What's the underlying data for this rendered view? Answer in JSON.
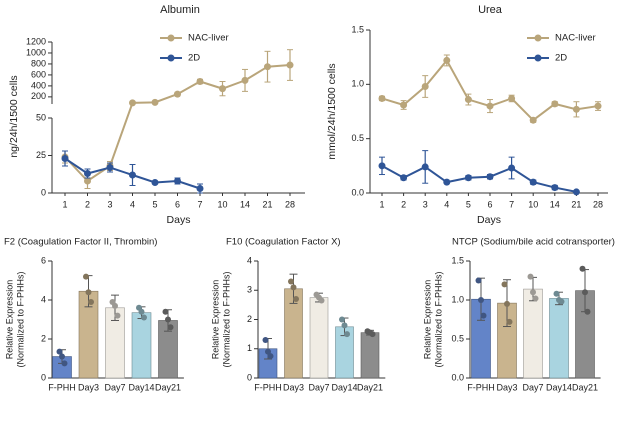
{
  "chart_data": [
    {
      "type": "line",
      "title": "Albumin",
      "xlabel": "Days",
      "ylabel": "ng/24h/1500 cells",
      "categories": [
        "1",
        "2",
        "3",
        "4",
        "5",
        "6",
        "7",
        "10",
        "14",
        "21",
        "28"
      ],
      "ylim": [
        0,
        1200
      ],
      "ybreak": [
        50,
        70
      ],
      "yticks": [
        0,
        25,
        50,
        200,
        400,
        600,
        800,
        1000,
        1200
      ],
      "series": [
        {
          "name": "NAC-liver",
          "color": "#b9a57a",
          "values": [
            24,
            8,
            18,
            90,
            100,
            250,
            480,
            350,
            500,
            750,
            780
          ],
          "errors": [
            4,
            5,
            3,
            10,
            15,
            30,
            40,
            130,
            200,
            280,
            280
          ]
        },
        {
          "name": "2D",
          "color": "#2f5597",
          "values": [
            23,
            13,
            17,
            12,
            7,
            8,
            3,
            null,
            null,
            null,
            null
          ],
          "errors": [
            5,
            3,
            3,
            7,
            1,
            2,
            3,
            null,
            null,
            null,
            null
          ]
        }
      ]
    },
    {
      "type": "line",
      "title": "Urea",
      "xlabel": "Days",
      "ylabel": "mmol/24h/1500 cells",
      "categories": [
        "1",
        "2",
        "3",
        "4",
        "5",
        "6",
        "7",
        "10",
        "14",
        "21",
        "28"
      ],
      "ylim": [
        0,
        1.5
      ],
      "yticks": [
        {
          "value": 0,
          "label": "0.0"
        },
        0.5,
        {
          "value": 1,
          "label": "1.0"
        },
        1.5
      ],
      "series": [
        {
          "name": "NAC-liver",
          "color": "#b9a57a",
          "values": [
            0.87,
            0.81,
            0.98,
            1.22,
            0.86,
            0.8,
            0.87,
            0.67,
            0.82,
            0.77,
            0.8
          ],
          "errors": [
            0.02,
            0.04,
            0.1,
            0.05,
            0.05,
            0.06,
            0.03,
            0.02,
            0.02,
            0.07,
            0.04
          ]
        },
        {
          "name": "2D",
          "color": "#2f5597",
          "values": [
            0.25,
            0.14,
            0.24,
            0.1,
            0.14,
            0.15,
            0.23,
            0.1,
            0.05,
            0.01,
            null
          ],
          "errors": [
            0.08,
            0.02,
            0.15,
            0.01,
            0.02,
            0.02,
            0.1,
            0.02,
            0.02,
            0.01,
            null
          ]
        }
      ]
    },
    {
      "type": "bar",
      "title": "F2 (Coagulation Factor II, Thrombin)",
      "ylabel": [
        "Relative Expression",
        "(Normalized to F-PHHs)"
      ],
      "categories": [
        "F-PHH",
        "Day3",
        "Day7",
        "Day14",
        "Day21"
      ],
      "colors": [
        "#6384c8",
        "#c9b48e",
        "#f0ece4",
        "#a9d4e0",
        "#8c8c8c"
      ],
      "values": [
        1.1,
        4.45,
        3.6,
        3.35,
        2.95
      ],
      "errors": [
        0.35,
        0.8,
        0.65,
        0.3,
        0.55
      ],
      "points": [
        [
          1.35,
          1.1,
          0.75
        ],
        [
          5.2,
          4.4,
          3.9
        ],
        [
          3.9,
          3.7,
          3.2
        ],
        [
          3.6,
          3.4,
          3.1
        ],
        [
          3.4,
          3.0,
          2.6
        ]
      ],
      "ylim": [
        0,
        6
      ],
      "yticks": [
        0,
        2,
        4,
        6
      ]
    },
    {
      "type": "bar",
      "title": "F10 (Coagulation Factor X)",
      "ylabel": [
        "Relative Expression",
        "(Normalized to F-PHHs)"
      ],
      "categories": [
        "F-PHH",
        "Day3",
        "Day7",
        "Day14",
        "Day21"
      ],
      "colors": [
        "#6384c8",
        "#c9b48e",
        "#f0ece4",
        "#a9d4e0",
        "#8c8c8c"
      ],
      "values": [
        1.0,
        3.05,
        2.75,
        1.75,
        1.55
      ],
      "errors": [
        0.35,
        0.5,
        0.15,
        0.3,
        0.08
      ],
      "points": [
        [
          1.3,
          0.9,
          0.75
        ],
        [
          3.3,
          3.1,
          2.7
        ],
        [
          2.85,
          2.75,
          2.65
        ],
        [
          2.0,
          1.8,
          1.5
        ],
        [
          1.6,
          1.55,
          1.5
        ]
      ],
      "ylim": [
        0,
        4
      ],
      "yticks": [
        0,
        1,
        2,
        3,
        4
      ]
    },
    {
      "type": "bar",
      "title": "NTCP (Sodium/bile acid cotransporter)",
      "ylabel": [
        "Relative Expression",
        "(Normalized to F-PHHs)"
      ],
      "categories": [
        "F-PHH",
        "Day3",
        "Day7",
        "Day14",
        "Day21"
      ],
      "colors": [
        "#6384c8",
        "#c9b48e",
        "#f0ece4",
        "#a9d4e0",
        "#8c8c8c"
      ],
      "values": [
        1.01,
        0.96,
        1.14,
        1.02,
        1.12
      ],
      "errors": [
        0.27,
        0.3,
        0.15,
        0.08,
        0.27
      ],
      "points": [
        [
          1.25,
          1.0,
          0.8
        ],
        [
          1.2,
          0.95,
          0.72
        ],
        [
          1.3,
          1.1,
          1.02
        ],
        [
          1.08,
          1.0,
          0.98
        ],
        [
          1.4,
          1.1,
          0.85
        ]
      ],
      "ylim": [
        0,
        1.5
      ],
      "yticks": [
        {
          "value": 0,
          "label": "0.0"
        },
        0.5,
        {
          "value": 1,
          "label": "1.0"
        },
        1.5
      ]
    }
  ]
}
